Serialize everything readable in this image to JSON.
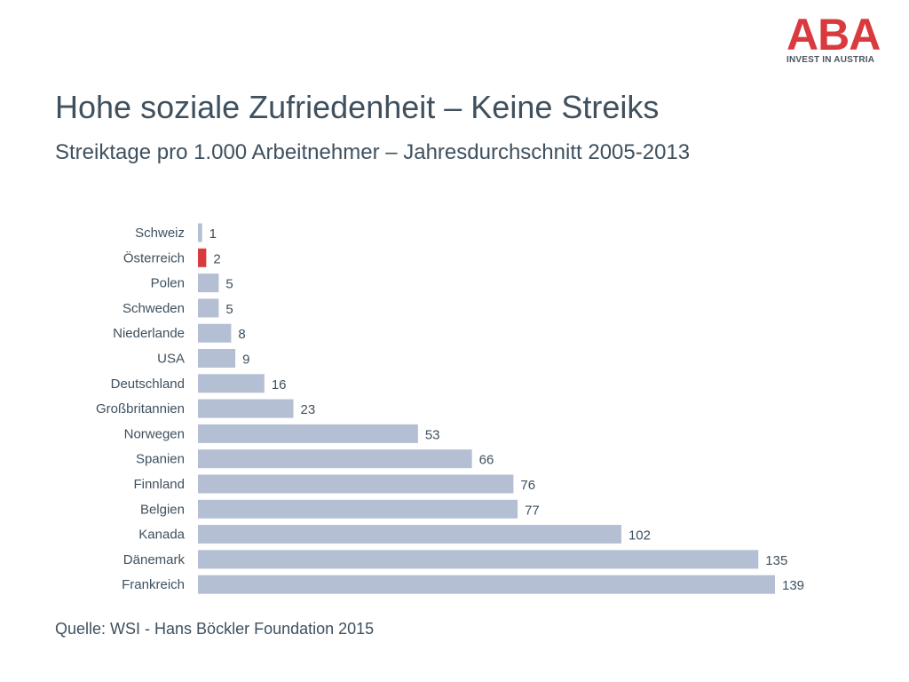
{
  "brand": {
    "logo_text": "ABA",
    "tagline": "INVEST IN AUSTRIA",
    "color": "#d93a3e"
  },
  "header": {
    "title": "Hohe soziale Zufriedenheit – Keine Streiks",
    "subtitle": "Streiktage pro 1.000 Arbeitnehmer – Jahresdurchschnitt 2005-2013"
  },
  "footer": {
    "source": "Quelle: WSI - Hans Böckler Foundation 2015"
  },
  "colors": {
    "bar": "#b4bfd3",
    "highlight": "#d93a3e",
    "text": "#3f505e"
  },
  "chart_data": {
    "type": "bar",
    "orientation": "horizontal",
    "categories": [
      "Schweiz",
      "Österreich",
      "Polen",
      "Schweden",
      "Niederlande",
      "USA",
      "Deutschland",
      "Großbritannien",
      "Norwegen",
      "Spanien",
      "Finnland",
      "Belgien",
      "Kanada",
      "Dänemark",
      "Frankreich"
    ],
    "values": [
      1,
      2,
      5,
      5,
      8,
      9,
      16,
      23,
      53,
      66,
      76,
      77,
      102,
      135,
      139
    ],
    "highlight": "Österreich",
    "xlim": [
      0,
      139
    ],
    "grid": false,
    "legend": "none"
  }
}
